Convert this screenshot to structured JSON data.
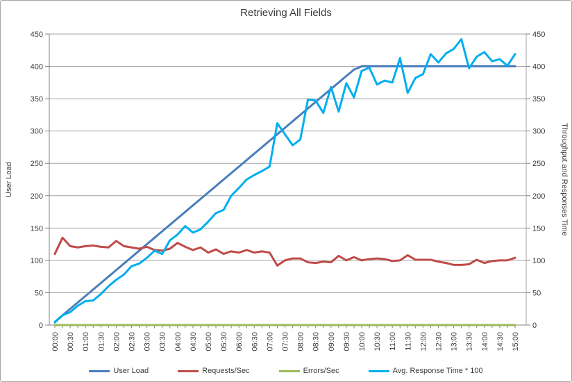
{
  "chart_data": {
    "type": "line",
    "title": "Retrieving All Fields",
    "ylabel_left": "User Load",
    "ylabel_right": "Throughput and Responses Time",
    "ylim": [
      0,
      450
    ],
    "ytick_interval": 50,
    "yticks": [
      0,
      50,
      100,
      150,
      200,
      250,
      300,
      350,
      400,
      450
    ],
    "grid": "horizontal",
    "legend_position": "bottom",
    "x_label_every": 2,
    "x": [
      "00:00",
      "00:15",
      "00:30",
      "00:45",
      "01:00",
      "01:15",
      "01:30",
      "01:45",
      "02:00",
      "02:15",
      "02:30",
      "02:45",
      "03:00",
      "03:15",
      "03:30",
      "03:45",
      "04:00",
      "04:15",
      "04:30",
      "04:45",
      "05:00",
      "05:15",
      "05:30",
      "05:45",
      "06:00",
      "06:15",
      "06:30",
      "06:45",
      "07:00",
      "07:15",
      "07:30",
      "07:45",
      "08:00",
      "08:15",
      "08:30",
      "08:45",
      "09:00",
      "09:15",
      "09:30",
      "09:45",
      "10:00",
      "10:15",
      "10:30",
      "10:45",
      "11:00",
      "11:15",
      "11:30",
      "11:45",
      "12:00",
      "12:15",
      "12:30",
      "12:45",
      "13:00",
      "13:15",
      "13:30",
      "13:45",
      "14:00",
      "14:15",
      "14:30",
      "14:45",
      "15:00"
    ],
    "series": [
      {
        "name": "User Load",
        "color": "#4a7ebb",
        "values": [
          5,
          15,
          25,
          35,
          45,
          55,
          65,
          75,
          85,
          95,
          105,
          115,
          125,
          135,
          145,
          155,
          165,
          175,
          185,
          195,
          205,
          215,
          225,
          235,
          245,
          255,
          265,
          275,
          285,
          295,
          305,
          315,
          325,
          335,
          345,
          355,
          365,
          375,
          385,
          395,
          400,
          400,
          400,
          400,
          400,
          400,
          400,
          400,
          400,
          400,
          400,
          400,
          400,
          400,
          400,
          400,
          400,
          400,
          400,
          400,
          400
        ]
      },
      {
        "name": "Requests/Sec",
        "color": "#be4b48",
        "values": [
          110,
          135,
          122,
          120,
          122,
          123,
          121,
          120,
          130,
          122,
          120,
          118,
          121,
          116,
          115,
          118,
          127,
          121,
          116,
          120,
          112,
          117,
          110,
          114,
          112,
          116,
          112,
          114,
          112,
          92,
          100,
          103,
          103,
          97,
          96,
          98,
          97,
          107,
          100,
          105,
          100,
          102,
          103,
          102,
          99,
          100,
          108,
          101,
          101,
          101,
          98,
          96,
          93,
          93,
          94,
          101,
          96,
          99,
          100,
          100,
          104
        ]
      },
      {
        "name": "Errors/Sec",
        "color": "#9aba58",
        "values": [
          0,
          0,
          0,
          0,
          0,
          0,
          0,
          0,
          0,
          0,
          0,
          0,
          0,
          0,
          0,
          0,
          0,
          0,
          0,
          0,
          0,
          0,
          0,
          0,
          0,
          0,
          0,
          0,
          0,
          0,
          0,
          0,
          0,
          0,
          0,
          0,
          0,
          0,
          0,
          0,
          0,
          0,
          0,
          0,
          0,
          0,
          0,
          0,
          0,
          0,
          0,
          0,
          0,
          0,
          0,
          0,
          0,
          0,
          0,
          0,
          0
        ]
      },
      {
        "name": "Avg. Response Time * 100",
        "color": "#00aeef",
        "values": [
          4,
          15,
          20,
          30,
          37,
          38,
          48,
          60,
          70,
          78,
          91,
          95,
          104,
          115,
          110,
          131,
          140,
          153,
          143,
          148,
          160,
          173,
          178,
          200,
          212,
          225,
          232,
          238,
          245,
          312,
          295,
          278,
          287,
          349,
          347,
          328,
          368,
          330,
          374,
          352,
          393,
          398,
          372,
          378,
          375,
          413,
          359,
          382,
          388,
          419,
          406,
          420,
          427,
          442,
          397,
          415,
          422,
          408,
          411,
          401,
          419
        ]
      }
    ],
    "styles": {
      "grid_color": "#a3a3a3",
      "axis_color": "#808080",
      "text_color": "#3b3b3b",
      "line_width": 3
    }
  }
}
